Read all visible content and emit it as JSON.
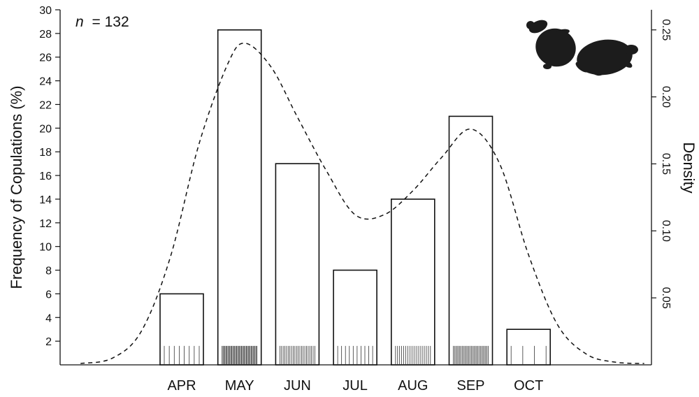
{
  "chart_data": {
    "type": "bar",
    "title": "",
    "annotation": {
      "n_label": "n",
      "n_value": "= 132"
    },
    "xlabel": "",
    "ylabel": "Frequency of Copulations (%)",
    "y2label": "Density",
    "categories": [
      "APR",
      "MAY",
      "JUN",
      "JUL",
      "AUG",
      "SEP",
      "OCT"
    ],
    "values": [
      6,
      28.3,
      17,
      8,
      14,
      21,
      3
    ],
    "ylim": [
      0,
      30
    ],
    "yticks": [
      2,
      4,
      6,
      8,
      10,
      12,
      14,
      16,
      18,
      20,
      22,
      24,
      26,
      28,
      30
    ],
    "y2lim": [
      0,
      0.265
    ],
    "y2ticks": [
      "0.05",
      "0.10",
      "0.15",
      "0.20",
      "0.25"
    ],
    "y2tick_values": [
      0.05,
      0.1,
      0.15,
      0.2,
      0.25
    ],
    "rug_counts": [
      8,
      37,
      22,
      10,
      18,
      28,
      4
    ],
    "density_curve": {
      "style": "dashed",
      "month_index": [
        -1.75,
        -1.2,
        -0.7,
        -0.2,
        0.3,
        0.8,
        1.1,
        1.55,
        2.0,
        2.5,
        3.0,
        3.5,
        4.0,
        4.5,
        5.0,
        5.5,
        6.0,
        6.5,
        7.0,
        7.5,
        8.0
      ],
      "density": [
        0.001,
        0.005,
        0.025,
        0.08,
        0.165,
        0.225,
        0.24,
        0.222,
        0.185,
        0.145,
        0.112,
        0.112,
        0.13,
        0.155,
        0.176,
        0.15,
        0.082,
        0.03,
        0.008,
        0.002,
        0.001
      ]
    },
    "silhouette": "two-turtles-mating-icon",
    "grid": false,
    "legend": "none"
  }
}
